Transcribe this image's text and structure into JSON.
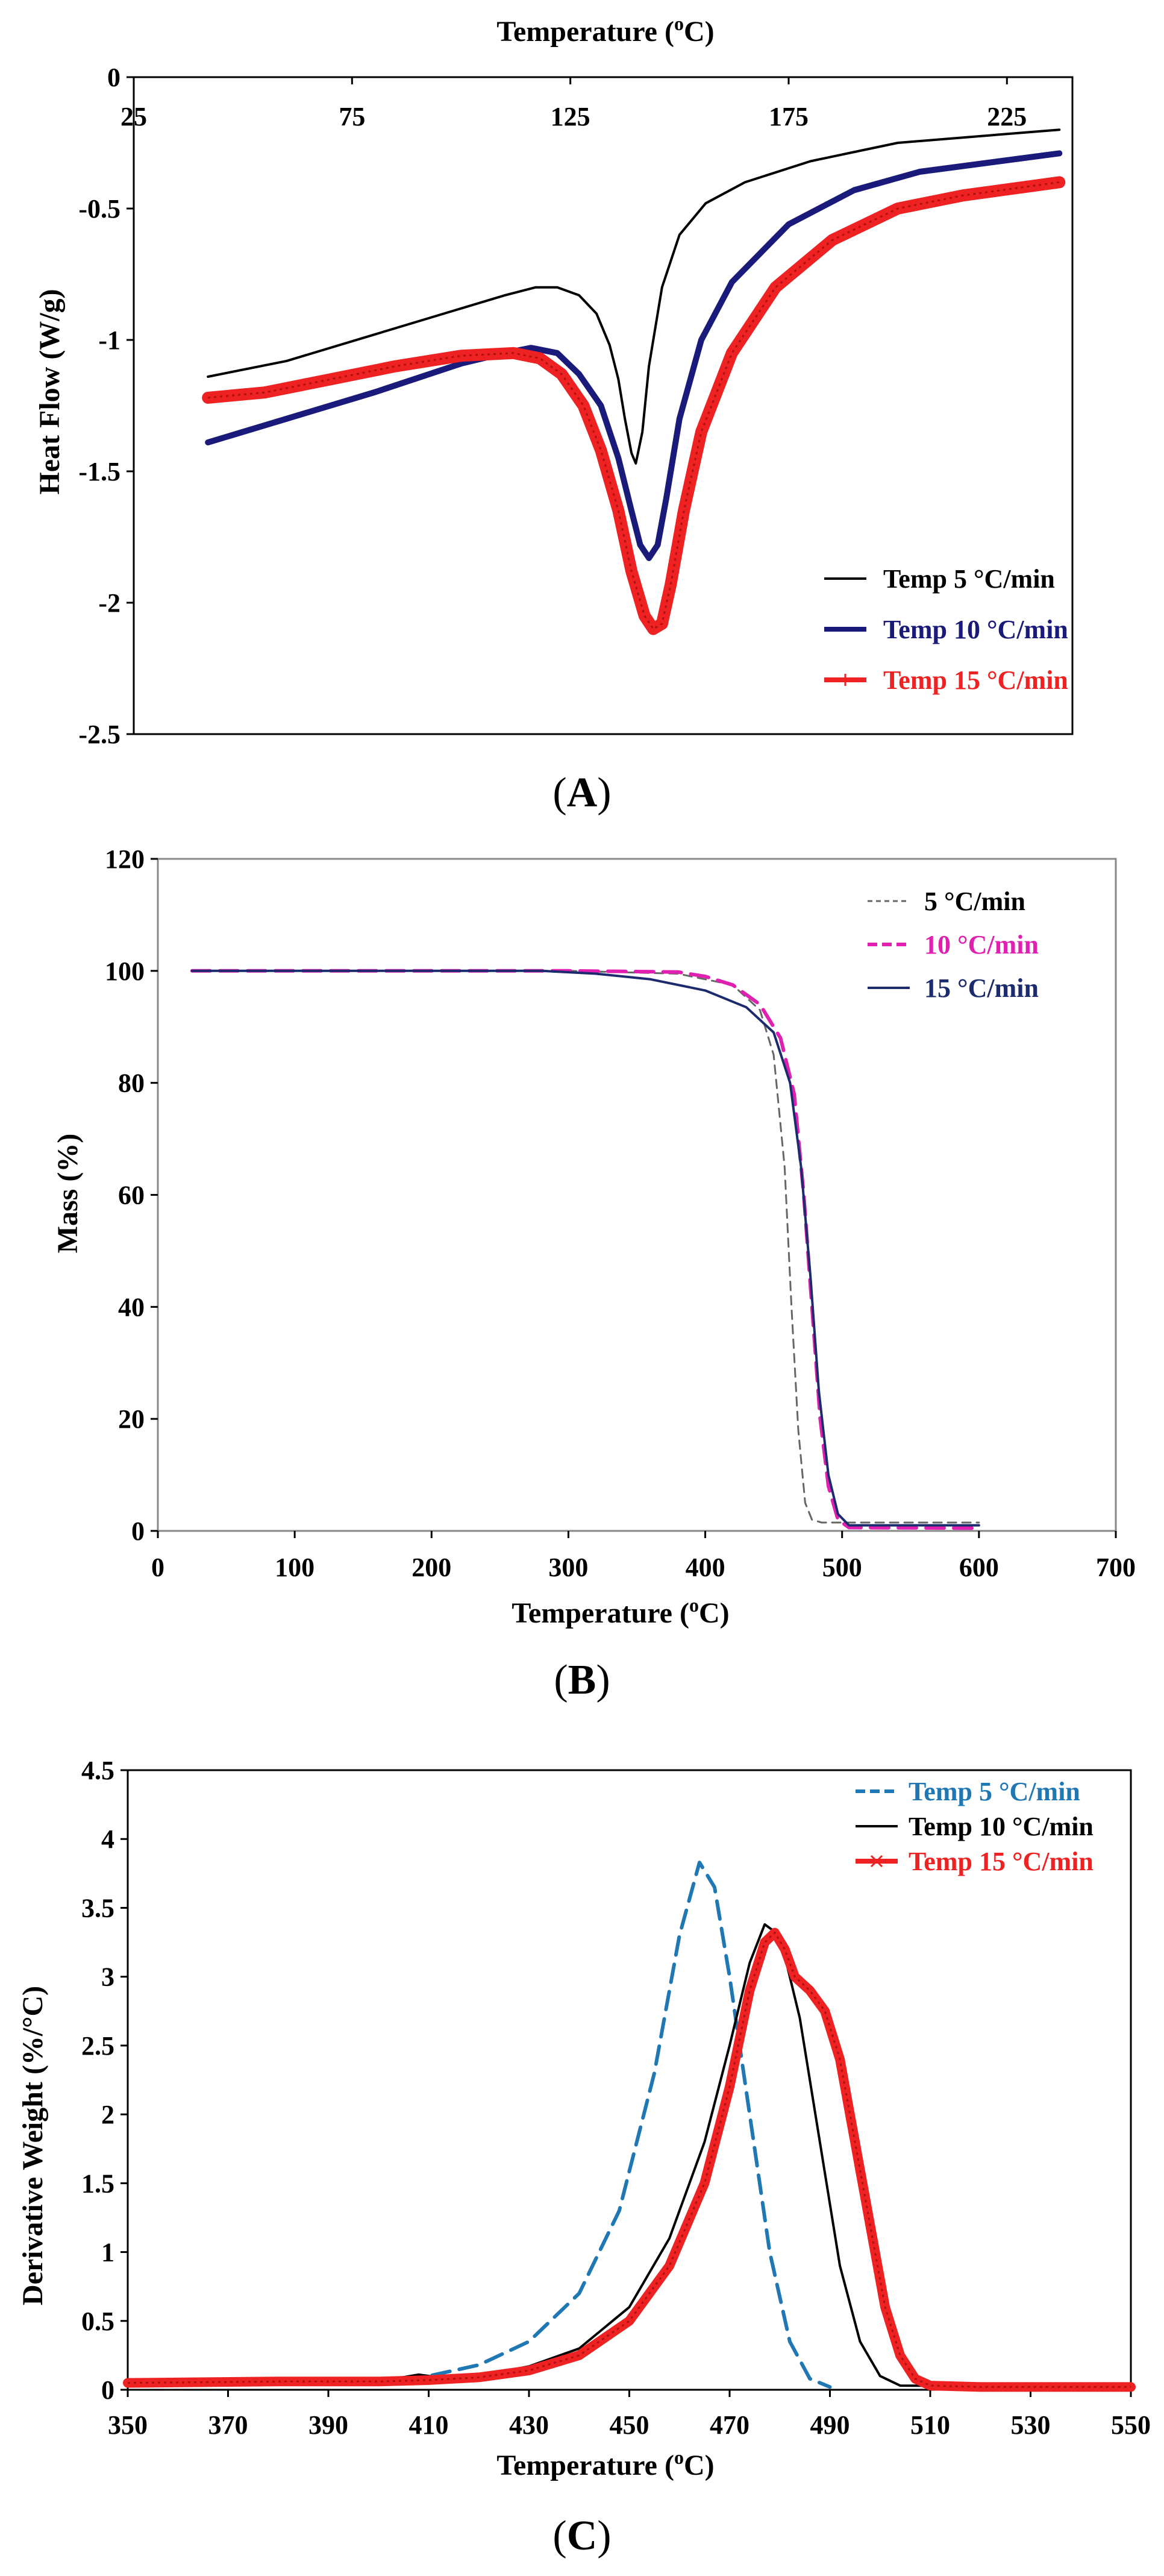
{
  "colors": {
    "black": "#000000",
    "navy": "#1a1a7a",
    "red": "#ee2222",
    "gray": "#666666",
    "magenta": "#e020b0",
    "darknavy": "#1c2a6e",
    "blue": "#1f77b4"
  },
  "chart_data": [
    {
      "type": "line",
      "panel_label": "(A)",
      "panel_letter": "A",
      "xlabel": "Temperature (oC)",
      "ylabel": "Heat Flow (W/g)",
      "xlim": [
        25,
        240
      ],
      "ylim": [
        -2.5,
        0
      ],
      "x_ticks": [
        25,
        75,
        125,
        175,
        225
      ],
      "y_ticks": [
        0,
        -0.5,
        -1,
        -1.5,
        -2,
        -2.5
      ],
      "legend": "bottom-right",
      "series": [
        {
          "name": "Temp 5 °C/min",
          "color": "#000000",
          "style": "solid",
          "x": [
            42,
            60,
            80,
            100,
            110,
            117,
            122,
            127,
            131,
            134,
            136,
            137.5,
            139,
            140,
            141.5,
            143,
            146,
            150,
            156,
            165,
            180,
            200,
            237
          ],
          "y": [
            -1.14,
            -1.08,
            -0.98,
            -0.88,
            -0.83,
            -0.8,
            -0.8,
            -0.83,
            -0.9,
            -1.02,
            -1.15,
            -1.3,
            -1.43,
            -1.47,
            -1.35,
            -1.1,
            -0.8,
            -0.6,
            -0.48,
            -0.4,
            -0.32,
            -0.25,
            -0.2
          ]
        },
        {
          "name": "Temp 10 °C/min",
          "color": "#1a1a7a",
          "style": "thick",
          "x": [
            42,
            60,
            80,
            100,
            110,
            116,
            122,
            127,
            132,
            136,
            139,
            141,
            143,
            145,
            147,
            150,
            155,
            162,
            175,
            190,
            205,
            237
          ],
          "y": [
            -1.39,
            -1.3,
            -1.2,
            -1.09,
            -1.05,
            -1.03,
            -1.05,
            -1.13,
            -1.25,
            -1.45,
            -1.65,
            -1.78,
            -1.83,
            -1.78,
            -1.6,
            -1.3,
            -1.0,
            -0.78,
            -0.56,
            -0.43,
            -0.36,
            -0.29
          ]
        },
        {
          "name": "Temp 15 °C/min",
          "color": "#ee2222",
          "style": "marker-plus",
          "x": [
            42,
            55,
            70,
            85,
            100,
            112,
            118,
            123,
            128,
            132,
            136,
            139,
            142,
            144,
            146,
            148,
            151,
            155,
            162,
            172,
            185,
            200,
            215,
            237
          ],
          "y": [
            -1.22,
            -1.2,
            -1.15,
            -1.1,
            -1.06,
            -1.05,
            -1.07,
            -1.13,
            -1.25,
            -1.42,
            -1.65,
            -1.88,
            -2.05,
            -2.1,
            -2.08,
            -1.93,
            -1.65,
            -1.35,
            -1.05,
            -0.8,
            -0.62,
            -0.5,
            -0.45,
            -0.4
          ]
        }
      ]
    },
    {
      "type": "line",
      "panel_label": "(B)",
      "panel_letter": "B",
      "xlabel": "Temperature (oC)",
      "ylabel": "Mass (%)",
      "xlim": [
        0,
        700
      ],
      "ylim": [
        0,
        120
      ],
      "x_ticks": [
        0,
        100,
        200,
        300,
        400,
        500,
        600,
        700
      ],
      "y_ticks": [
        0,
        20,
        40,
        60,
        80,
        100,
        120
      ],
      "legend": "top-right",
      "series": [
        {
          "name": "5 °C/min",
          "color": "#666666",
          "style": "dashed-thin",
          "x": [
            25,
            300,
            380,
            420,
            440,
            450,
            458,
            463,
            468,
            473,
            478,
            485,
            600
          ],
          "y": [
            100,
            100,
            99.5,
            97.5,
            93,
            85,
            65,
            40,
            18,
            5,
            2,
            1.5,
            1.5
          ]
        },
        {
          "name": "10 °C/min",
          "color": "#e020b0",
          "style": "dashed",
          "x": [
            25,
            300,
            380,
            400,
            420,
            440,
            455,
            465,
            472,
            478,
            484,
            490,
            497,
            505,
            600
          ],
          "y": [
            100,
            100,
            99.8,
            99,
            97.5,
            94,
            88,
            78,
            60,
            40,
            20,
            8,
            2,
            0.6,
            0.5
          ]
        },
        {
          "name": "15 °C/min",
          "color": "#1c2a6e",
          "style": "solid",
          "x": [
            25,
            280,
            320,
            360,
            400,
            430,
            450,
            462,
            470,
            477,
            483,
            490,
            497,
            505,
            600
          ],
          "y": [
            100,
            100,
            99.5,
            98.5,
            96.5,
            93.5,
            89,
            80,
            65,
            45,
            25,
            10,
            3,
            1,
            1
          ]
        }
      ]
    },
    {
      "type": "line",
      "panel_label": "(C)",
      "panel_letter": "C",
      "xlabel": "Temperature (oC)",
      "ylabel": "Derivative Weight (%/°C)",
      "xlim": [
        350,
        550
      ],
      "ylim": [
        0,
        4.5
      ],
      "x_ticks": [
        350,
        370,
        390,
        410,
        430,
        450,
        470,
        490,
        510,
        530,
        550
      ],
      "y_ticks": [
        0,
        0.5,
        1,
        1.5,
        2,
        2.5,
        3,
        3.5,
        4,
        4.5
      ],
      "legend": "top-right",
      "series": [
        {
          "name": "Temp 5 °C/min",
          "color": "#1f77b4",
          "style": "dashed",
          "x": [
            350,
            380,
            400,
            410,
            420,
            430,
            440,
            448,
            455,
            460,
            464,
            467,
            470,
            474,
            478,
            482,
            486,
            490
          ],
          "y": [
            0.04,
            0.05,
            0.06,
            0.1,
            0.18,
            0.35,
            0.7,
            1.3,
            2.3,
            3.3,
            3.83,
            3.65,
            3.0,
            2.0,
            1.0,
            0.35,
            0.08,
            0.02
          ]
        },
        {
          "name": "Temp 10 °C/min",
          "color": "#000000",
          "style": "solid",
          "x": [
            350,
            400,
            408,
            412,
            420,
            430,
            440,
            450,
            458,
            465,
            470,
            474,
            477,
            480,
            484,
            488,
            492,
            496,
            500,
            504,
            550
          ],
          "y": [
            0.04,
            0.06,
            0.11,
            0.09,
            0.1,
            0.17,
            0.3,
            0.6,
            1.1,
            1.8,
            2.5,
            3.1,
            3.38,
            3.3,
            2.7,
            1.8,
            0.9,
            0.35,
            0.1,
            0.03,
            0.02
          ]
        },
        {
          "name": "Temp 15 °C/min",
          "color": "#ee2222",
          "style": "marker-x",
          "x": [
            350,
            380,
            400,
            410,
            420,
            430,
            440,
            450,
            458,
            465,
            470,
            474,
            477,
            479,
            481,
            483,
            486,
            489,
            492,
            495,
            498,
            501,
            504,
            507,
            510,
            520,
            550
          ],
          "y": [
            0.05,
            0.06,
            0.06,
            0.07,
            0.09,
            0.14,
            0.25,
            0.5,
            0.9,
            1.5,
            2.2,
            2.9,
            3.25,
            3.32,
            3.2,
            3.0,
            2.9,
            2.75,
            2.4,
            1.8,
            1.2,
            0.6,
            0.25,
            0.08,
            0.03,
            0.02,
            0.02
          ]
        }
      ]
    }
  ]
}
